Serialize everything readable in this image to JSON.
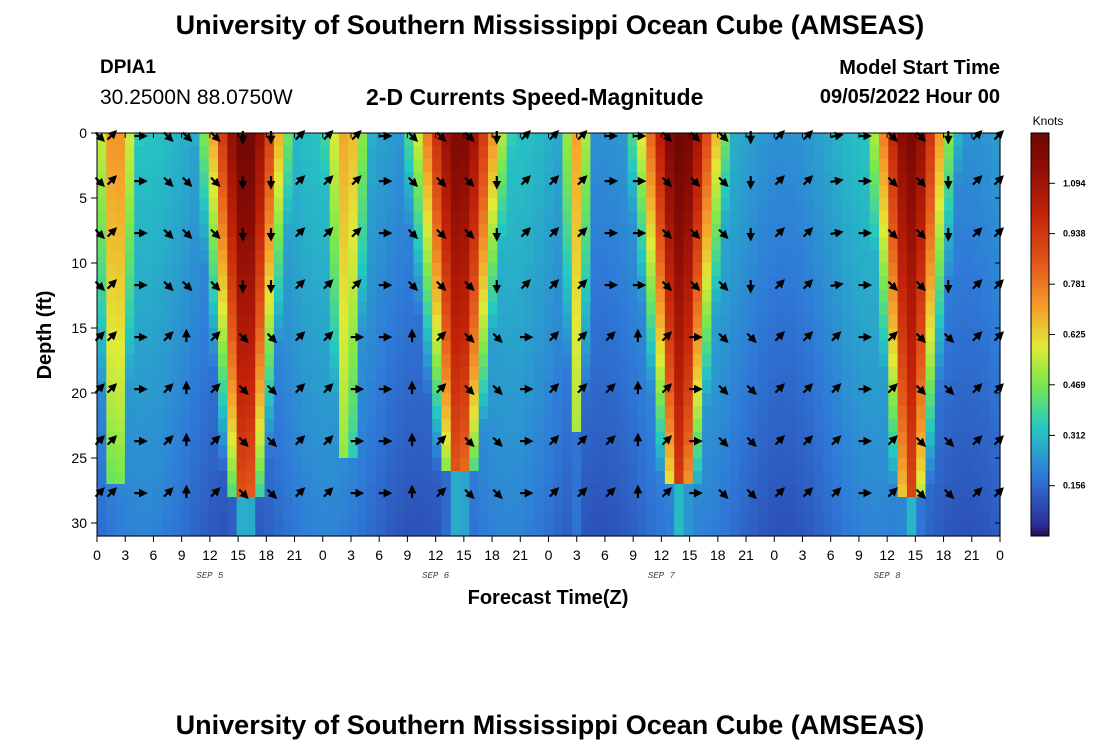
{
  "header": {
    "title": "University of Southern Mississippi Ocean Cube (AMSEAS)",
    "station": "DPIA1",
    "coords": "30.2500N  88.0750W",
    "subtitle": "2-D Currents Speed-Magnitude",
    "model_start_label": "Model Start Time",
    "model_start_value": "09/05/2022 Hour 00"
  },
  "footer": {
    "title": "University of Southern Mississippi Ocean Cube (AMSEAS)"
  },
  "chart_data": {
    "type": "heatmap",
    "title": "2-D Currents Speed-Magnitude",
    "xlabel": "Forecast Time(Z)",
    "ylabel": "Depth (ft)",
    "x_tick_labels": [
      "0",
      "3",
      "6",
      "9",
      "12",
      "15",
      "18",
      "21",
      "0",
      "3",
      "6",
      "9",
      "12",
      "15",
      "18",
      "21",
      "0",
      "3",
      "6",
      "9",
      "12",
      "15",
      "18",
      "21",
      "0",
      "3",
      "6",
      "9",
      "12",
      "15",
      "18",
      "21",
      "0"
    ],
    "x_range_hours": [
      0,
      96
    ],
    "date_labels": [
      {
        "label": "SEP 5",
        "hour": 12
      },
      {
        "label": "SEP 6",
        "hour": 36
      },
      {
        "label": "SEP 7",
        "hour": 60
      },
      {
        "label": "SEP 8",
        "hour": 84
      }
    ],
    "y_ticks": [
      0,
      5,
      10,
      15,
      20,
      25,
      30
    ],
    "y_range_ft": [
      0,
      31
    ],
    "colorbar": {
      "unit": "Knots",
      "range": [
        0,
        1.25
      ],
      "tick_values": [
        0.156,
        0.312,
        0.469,
        0.625,
        0.781,
        0.938,
        1.094
      ],
      "tick_labels": [
        "0.156",
        "0.312",
        "0.469",
        "0.625",
        "0.781",
        "0.938",
        "1.094"
      ]
    },
    "speed_events": [
      {
        "center_hour": 2,
        "peak_knots": 0.75,
        "width_hours": 2.5,
        "max_depth_ft": 27
      },
      {
        "center_hour": 15.8,
        "peak_knots": 1.25,
        "width_hours": 4.2,
        "max_depth_ft": 28
      },
      {
        "center_hour": 26.5,
        "peak_knots": 0.7,
        "width_hours": 2.6,
        "max_depth_ft": 25
      },
      {
        "center_hour": 38.5,
        "peak_knots": 1.2,
        "width_hours": 4.8,
        "max_depth_ft": 26
      },
      {
        "center_hour": 51,
        "peak_knots": 0.7,
        "width_hours": 1.5,
        "max_depth_ft": 23
      },
      {
        "center_hour": 62,
        "peak_knots": 1.25,
        "width_hours": 4.5,
        "max_depth_ft": 27
      },
      {
        "center_hour": 86.5,
        "peak_knots": 1.2,
        "width_hours": 4,
        "max_depth_ft": 28
      }
    ],
    "vector_depths_ft": [
      0,
      3.7,
      7.7,
      11.7,
      15.7,
      19.7,
      23.7,
      27.7
    ],
    "vector_hours": [
      0,
      1.5,
      4.5,
      7.5,
      9.5,
      12.5,
      15.5,
      18.5,
      21.5,
      24.5,
      27.5,
      30.5,
      33.5,
      36.5,
      39.5,
      42.5,
      45.5,
      48.5,
      51.5,
      54.5,
      57.5,
      60.5,
      63.5,
      66.5,
      69.5,
      72.5,
      75.5,
      78.5,
      81.5,
      84.5,
      87.5,
      90.5,
      93.5,
      96
    ],
    "vector_directions": {
      "surface_rows": [
        135,
        45,
        90,
        135,
        135,
        135,
        180,
        180,
        45,
        45,
        45,
        90,
        135,
        135,
        135,
        180,
        45,
        45,
        45,
        90,
        90,
        135,
        135,
        135,
        180,
        45,
        45,
        80,
        90,
        135,
        135,
        180,
        45,
        45
      ],
      "deep_rows": [
        45,
        45,
        90,
        45,
        0,
        45,
        135,
        135,
        45,
        45,
        90,
        90,
        0,
        45,
        135,
        135,
        90,
        45,
        45,
        45,
        0,
        45,
        90,
        135,
        135,
        45,
        45,
        45,
        90,
        45,
        135,
        135,
        45,
        45
      ]
    }
  }
}
